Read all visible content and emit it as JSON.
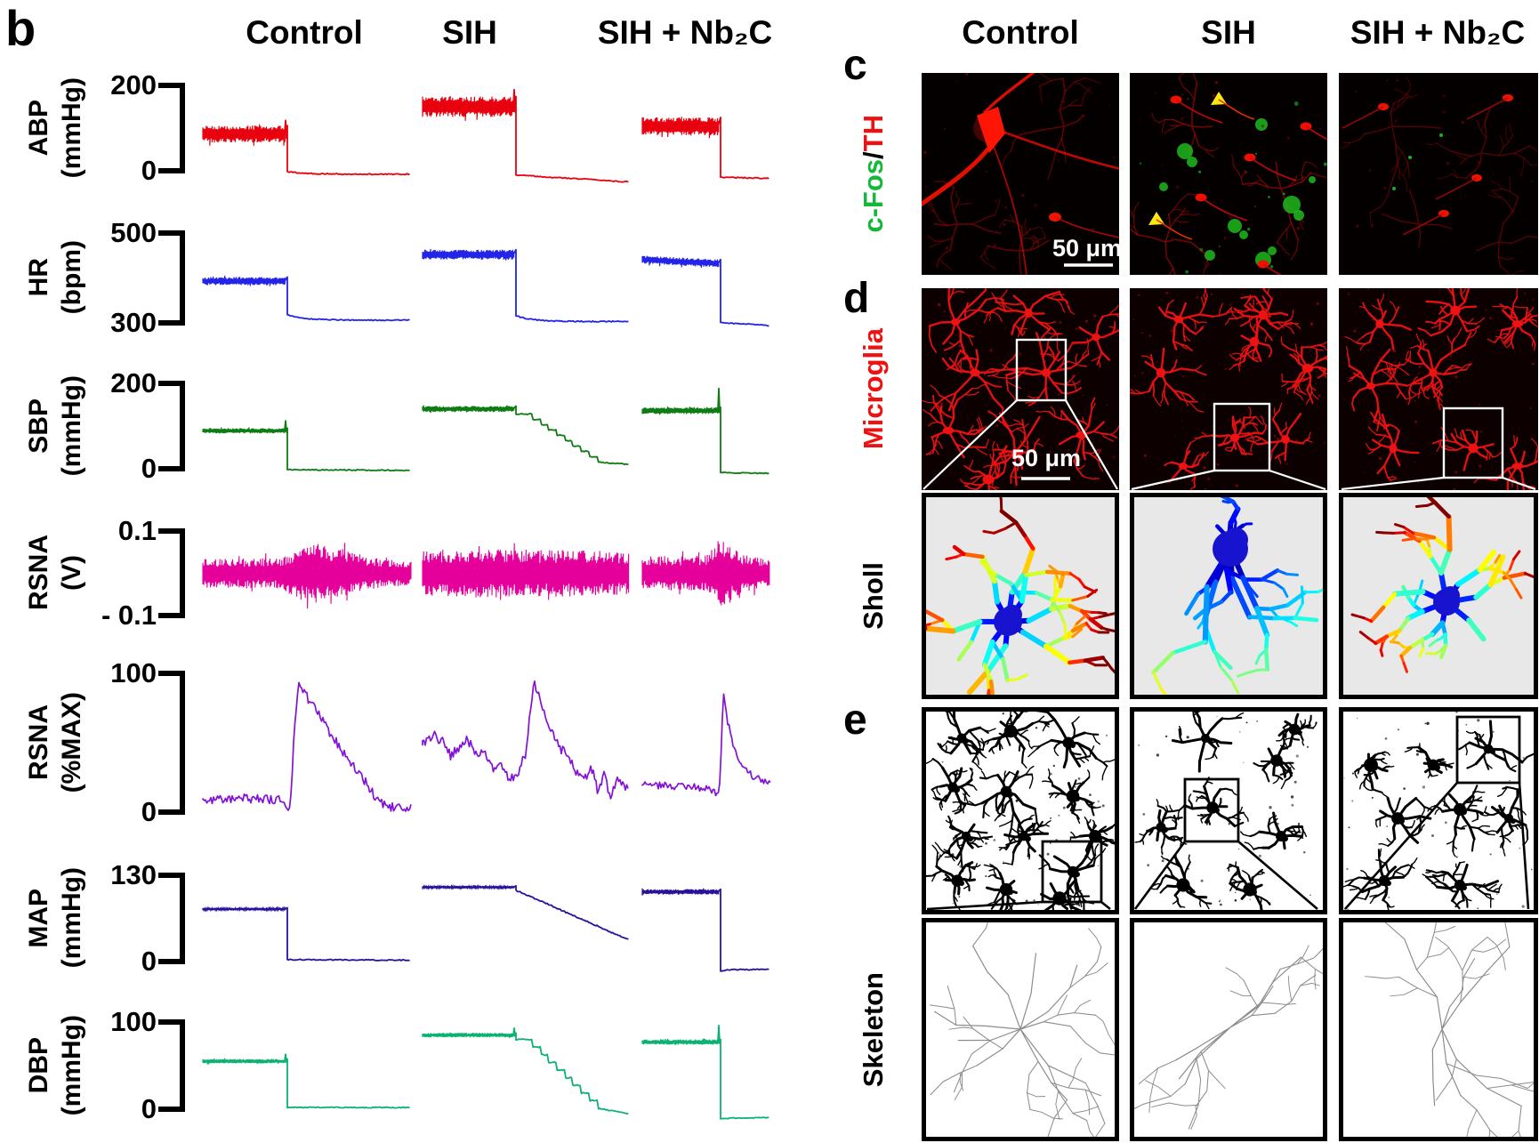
{
  "figure": {
    "panel_b": {
      "label": "b",
      "column_headers": [
        "Control",
        "SIH",
        "SIH + Nb₂C"
      ],
      "rows": [
        {
          "name": "ABP",
          "unit": "(mmHg)",
          "tick_top": "200",
          "tick_bottom": "0",
          "color": "#e8000f",
          "scale": {
            "vtop": 200,
            "ytop": 96,
            "vbot": 0,
            "ybot": 192
          },
          "traces": [
            {
              "t": "bp",
              "base": 86,
              "amp": 20,
              "spike": 118,
              "after": -2,
              "end": -8,
              "tail": "relax"
            },
            {
              "t": "bp",
              "base": 150,
              "amp": 24,
              "spike": 190,
              "after": -10,
              "end": -26,
              "tail": "slope"
            },
            {
              "t": "bp",
              "base": 104,
              "amp": 21,
              "after": -15,
              "end": -18,
              "tail": "flat"
            }
          ]
        },
        {
          "name": "HR",
          "unit": "(bpm)",
          "tick_top": "500",
          "tick_bottom": "300",
          "color": "#2424e8",
          "scale": {
            "vtop": 500,
            "ytop": 262,
            "vbot": 300,
            "ybot": 363
          },
          "traces": [
            {
              "t": "bp",
              "base": 393,
              "amp": 9,
              "after": 318,
              "end": 306,
              "tail": "relax"
            },
            {
              "t": "bp",
              "base": 452,
              "amp": 11,
              "after": 316,
              "end": 303,
              "tail": "relax"
            },
            {
              "t": "bp",
              "base": 441,
              "base2": 432,
              "amp": 9,
              "after": 301,
              "end": 294,
              "tail": "flat"
            }
          ]
        },
        {
          "name": "SBP",
          "unit": "(mmHg)",
          "tick_top": "200",
          "tick_bottom": "0",
          "color": "#0d7c12",
          "scale": {
            "vtop": 200,
            "ytop": 431,
            "vbot": 0,
            "ybot": 527
          },
          "traces": [
            {
              "t": "bp",
              "base": 89,
              "amp": 6,
              "spike": 112,
              "after": -2,
              "end": -4,
              "tail": "flat"
            },
            {
              "t": "bp",
              "base": 140,
              "amp": 7,
              "after": 128,
              "end": 10,
              "tail": "steps"
            },
            {
              "t": "bp",
              "base": 136,
              "amp": 8,
              "spike": 188,
              "after": -9,
              "end": -11,
              "tail": "flat"
            }
          ]
        },
        {
          "name": "RSNA",
          "unit": "(V)",
          "tick_top": "0.1",
          "tick_bottom": "- 0.1",
          "color": "#e6009b",
          "scale": {
            "vtop": 0.1,
            "ytop": 597,
            "vbot": -0.1,
            "ybot": 692
          },
          "traces": [
            {
              "t": "rsna",
              "env": [
                [
                  0,
                  0.034
                ],
                [
                  0.38,
                  0.036
                ],
                [
                  0.45,
                  0.062
                ],
                [
                  0.55,
                  0.07
                ],
                [
                  0.68,
                  0.058
                ],
                [
                  0.78,
                  0.04
                ],
                [
                  0.9,
                  0.032
                ],
                [
                  1,
                  0.028
                ]
              ]
            },
            {
              "t": "rsna",
              "env": [
                [
                  0,
                  0.052
                ],
                [
                  0.3,
                  0.058
                ],
                [
                  0.5,
                  0.054
                ],
                [
                  0.7,
                  0.056
                ],
                [
                  1,
                  0.05
                ]
              ]
            },
            {
              "t": "rsna",
              "env": [
                [
                  0,
                  0.04
                ],
                [
                  0.5,
                  0.042
                ],
                [
                  0.58,
                  0.075
                ],
                [
                  0.62,
                  0.095
                ],
                [
                  0.68,
                  0.07
                ],
                [
                  0.78,
                  0.045
                ],
                [
                  1,
                  0.03
                ]
              ]
            }
          ]
        },
        {
          "name": "RSNA",
          "unit": "(%MAX)",
          "tick_top": "100",
          "tick_bottom": "0",
          "color": "#8312d6",
          "scale": {
            "vtop": 100,
            "ytop": 757,
            "vbot": 0,
            "ybot": 913
          },
          "traces": [
            {
              "t": "pct",
              "noise": 3.2,
              "pts": [
                [
                  0,
                  9
                ],
                [
                  0.2,
                  10
                ],
                [
                  0.38,
                  9
                ],
                [
                  0.42,
                  2
                ],
                [
                  0.44,
                  60
                ],
                [
                  0.46,
                  93
                ],
                [
                  0.5,
                  83
                ],
                [
                  0.55,
                  72
                ],
                [
                  0.62,
                  55
                ],
                [
                  0.7,
                  38
                ],
                [
                  0.78,
                  22
                ],
                [
                  0.84,
                  8
                ],
                [
                  0.88,
                  4
                ],
                [
                  1,
                  3
                ]
              ]
            },
            {
              "t": "pct",
              "noise": 3.5,
              "pts": [
                [
                  0,
                  48
                ],
                [
                  0.06,
                  55
                ],
                [
                  0.1,
                  50
                ],
                [
                  0.14,
                  40
                ],
                [
                  0.18,
                  48
                ],
                [
                  0.22,
                  52
                ],
                [
                  0.26,
                  40
                ],
                [
                  0.3,
                  44
                ],
                [
                  0.34,
                  30
                ],
                [
                  0.38,
                  34
                ],
                [
                  0.42,
                  24
                ],
                [
                  0.46,
                  28
                ],
                [
                  0.5,
                  42
                ],
                [
                  0.54,
                  95
                ],
                [
                  0.57,
                  80
                ],
                [
                  0.61,
                  62
                ],
                [
                  0.66,
                  48
                ],
                [
                  0.7,
                  40
                ],
                [
                  0.74,
                  30
                ],
                [
                  0.78,
                  24
                ],
                [
                  0.82,
                  32
                ],
                [
                  0.85,
                  14
                ],
                [
                  0.88,
                  26
                ],
                [
                  0.91,
                  10
                ],
                [
                  0.94,
                  22
                ],
                [
                  1,
                  18
                ]
              ]
            },
            {
              "t": "pct",
              "noise": 2.6,
              "pts": [
                [
                  0,
                  20
                ],
                [
                  0.2,
                  19
                ],
                [
                  0.4,
                  18
                ],
                [
                  0.55,
                  16
                ],
                [
                  0.6,
                  12
                ],
                [
                  0.62,
                  50
                ],
                [
                  0.63,
                  86
                ],
                [
                  0.66,
                  68
                ],
                [
                  0.7,
                  52
                ],
                [
                  0.74,
                  40
                ],
                [
                  0.8,
                  30
                ],
                [
                  0.86,
                  26
                ],
                [
                  0.93,
                  23
                ],
                [
                  1,
                  21
                ]
              ]
            }
          ]
        },
        {
          "name": "MAP",
          "unit": "(mmHg)",
          "tick_top": "130",
          "tick_bottom": "0",
          "color": "#28129b",
          "scale": {
            "vtop": 130,
            "ytop": 984,
            "vbot": 0,
            "ybot": 1081
          },
          "traces": [
            {
              "t": "bp",
              "base": 79,
              "amp": 2,
              "after": 3,
              "end": 2,
              "tail": "flat"
            },
            {
              "t": "bp",
              "base": 112,
              "amp": 2,
              "after": 108,
              "end": 33,
              "tail": "ramp"
            },
            {
              "t": "bp",
              "base": 105,
              "amp": 4,
              "after": -14,
              "end": -12,
              "tail": "relax"
            }
          ]
        },
        {
          "name": "DBP",
          "unit": "(mmHg)",
          "tick_top": "100",
          "tick_bottom": "0",
          "color": "#0bb273",
          "scale": {
            "vtop": 100,
            "ytop": 1149,
            "vbot": 0,
            "ybot": 1247
          },
          "traces": [
            {
              "t": "bp",
              "base": 55,
              "amp": 2.5,
              "spike": 63,
              "after": 2,
              "end": 2,
              "tail": "flat"
            },
            {
              "t": "bp",
              "base": 85,
              "amp": 2.5,
              "spike": 93,
              "after": 80,
              "end": -5,
              "tail": "steps"
            },
            {
              "t": "bp",
              "base": 77,
              "amp": 3,
              "spike": 96,
              "after": -11,
              "end": -10,
              "tail": "relax"
            }
          ]
        }
      ]
    },
    "panel_c": {
      "label": "c",
      "marker": {
        "part1": "c-Fos",
        "part1_color": "#14b83a",
        "sep": "/",
        "sep_color": "#000000",
        "part2": "TH",
        "part2_color": "#ed1111"
      },
      "scale_bar": "50 μm"
    },
    "panel_d": {
      "label": "d",
      "marker": "Microglia",
      "marker_color": "#ed1111",
      "scale_bar": "50 μm",
      "sub_row_label": "Sholl"
    },
    "panel_e": {
      "label": "e",
      "sub_row_label": "Skeleton"
    },
    "right_column_headers": [
      "Control",
      "SIH",
      "SIH + Nb₂C"
    ],
    "colors": {
      "microglia_red": "#ee1212",
      "cfos_green": "#1fc41f",
      "coloc_yellow": "#ffe715",
      "sholl_soma": "#1813cf",
      "skeleton_gray": "#8c8c8c"
    }
  }
}
